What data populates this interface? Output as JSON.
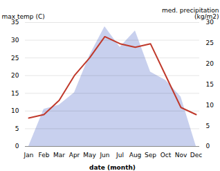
{
  "chart_data": {
    "type": "line",
    "xlabel": "date (month)",
    "ylabel": "max temp (C)",
    "y2label": "med. precipitation\n(kg/m2)",
    "categories": [
      "Jan",
      "Feb",
      "Mar",
      "Apr",
      "May",
      "Jun",
      "Jul",
      "Aug",
      "Sep",
      "Oct",
      "Nov",
      "Dec"
    ],
    "series": [
      {
        "type": "line",
        "color": "#c0392b",
        "values": [
          8,
          9,
          13,
          20,
          25,
          31,
          29,
          28,
          29,
          20,
          11,
          9
        ]
      },
      {
        "type": "area",
        "color": "#c8d0ee",
        "axis": "y2",
        "values": [
          0,
          9,
          10,
          13,
          22,
          29,
          24,
          28,
          18,
          16,
          12,
          0
        ]
      }
    ],
    "ylim": [
      0,
      35
    ],
    "yticks": [
      0,
      5,
      10,
      15,
      20,
      25,
      30,
      35
    ],
    "y2lim": [
      0,
      30
    ],
    "y2ticks": [
      0,
      5,
      10,
      15,
      20,
      25,
      30
    ],
    "grid": true
  }
}
